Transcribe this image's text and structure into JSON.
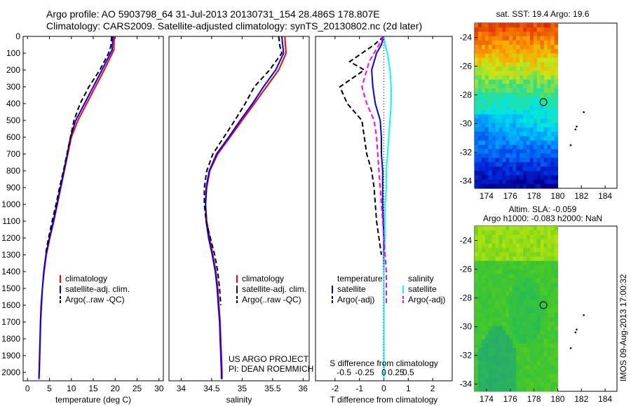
{
  "header": {
    "line1": "Argo profile: AO 5903798_64 31-Jul-2013 20130731_154 28.486S 178.807E",
    "line2": "Climatology: CARS2009. Satellite-adjusted climatology: synTS_20130802.nc (2d later)"
  },
  "side_stamp": "IMOS 09-Aug-2013 17:00:32",
  "chart_data": [
    {
      "id": "temperature",
      "type": "line",
      "xlabel": "temperature (deg C)",
      "ylabel": "",
      "xlim": [
        -1,
        31
      ],
      "ylim": [
        0,
        2050
      ],
      "y_reversed": true,
      "xticks": [
        0,
        5,
        10,
        15,
        20,
        25,
        30
      ],
      "yticks": [
        0,
        100,
        200,
        300,
        400,
        500,
        600,
        700,
        800,
        900,
        1000,
        1100,
        1200,
        1300,
        1400,
        1500,
        1600,
        1700,
        1800,
        1900,
        2000
      ],
      "legend": [
        "climatology",
        "satellite-adj. clim.",
        "Argo(..raw -QC)"
      ],
      "series": [
        {
          "name": "climatology",
          "color": "#ff0000",
          "dash": "solid",
          "points": [
            [
              19.8,
              0
            ],
            [
              19.7,
              80
            ],
            [
              17.5,
              200
            ],
            [
              15.5,
              300
            ],
            [
              13.5,
              400
            ],
            [
              11.5,
              500
            ],
            [
              10,
              600
            ],
            [
              9.2,
              700
            ],
            [
              8.4,
              800
            ],
            [
              7.6,
              900
            ],
            [
              6.8,
              1000
            ],
            [
              6.0,
              1100
            ],
            [
              5.1,
              1200
            ],
            [
              4.3,
              1300
            ],
            [
              3.8,
              1400
            ],
            [
              3.4,
              1500
            ],
            [
              3.2,
              1600
            ],
            [
              3.0,
              1700
            ],
            [
              2.9,
              1800
            ],
            [
              2.8,
              1900
            ],
            [
              2.7,
              2000
            ],
            [
              2.6,
              2040
            ]
          ]
        },
        {
          "name": "satellite-adj. clim.",
          "color": "#0000ff",
          "dash": "solid",
          "points": [
            [
              19.5,
              0
            ],
            [
              19.3,
              80
            ],
            [
              17,
              200
            ],
            [
              15,
              300
            ],
            [
              13,
              400
            ],
            [
              11,
              500
            ],
            [
              9.8,
              600
            ],
            [
              9.1,
              700
            ],
            [
              8.3,
              800
            ],
            [
              7.5,
              900
            ],
            [
              6.7,
              1000
            ],
            [
              5.9,
              1100
            ],
            [
              5.0,
              1200
            ],
            [
              4.2,
              1300
            ],
            [
              3.7,
              1400
            ],
            [
              3.4,
              1500
            ],
            [
              3.1,
              1600
            ],
            [
              2.95,
              1700
            ],
            [
              2.85,
              1800
            ],
            [
              2.75,
              1900
            ],
            [
              2.65,
              2000
            ],
            [
              2.6,
              2040
            ]
          ]
        },
        {
          "name": "Argo(..raw -QC)",
          "color": "#000000",
          "dash": "dashed",
          "points": [
            [
              19.2,
              0
            ],
            [
              19,
              60
            ],
            [
              18.5,
              100
            ],
            [
              16.5,
              200
            ],
            [
              14,
              300
            ],
            [
              12,
              400
            ],
            [
              10.6,
              500
            ],
            [
              9.8,
              600
            ],
            [
              9,
              700
            ],
            [
              8.2,
              800
            ],
            [
              7.3,
              900
            ],
            [
              6.5,
              1000
            ],
            [
              5.6,
              1100
            ],
            [
              4.8,
              1200
            ],
            [
              4.1,
              1300
            ]
          ]
        }
      ]
    },
    {
      "id": "salinity",
      "type": "line",
      "xlabel": "salinity",
      "ylabel": "",
      "xlim": [
        33.8,
        36.1
      ],
      "ylim": [
        0,
        2050
      ],
      "y_reversed": true,
      "xticks": [
        34,
        34.5,
        35,
        35.5,
        36
      ],
      "legend": [
        "climatology",
        "satellite-adj. clim.",
        "Argo(..raw -QC)"
      ],
      "annotation": [
        "US ARGO PROJECT",
        "PI: DEAN ROEMMICH"
      ],
      "series": [
        {
          "name": "climatology",
          "color": "#ff0000",
          "dash": "solid",
          "points": [
            [
              35.7,
              0
            ],
            [
              35.72,
              100
            ],
            [
              35.6,
              200
            ],
            [
              35.4,
              300
            ],
            [
              35.2,
              400
            ],
            [
              35,
              500
            ],
            [
              34.8,
              600
            ],
            [
              34.6,
              700
            ],
            [
              34.47,
              800
            ],
            [
              34.42,
              900
            ],
            [
              34.4,
              1000
            ],
            [
              34.42,
              1100
            ],
            [
              34.47,
              1200
            ],
            [
              34.52,
              1300
            ],
            [
              34.57,
              1400
            ],
            [
              34.6,
              1500
            ],
            [
              34.62,
              1600
            ],
            [
              34.64,
              1700
            ],
            [
              34.65,
              1800
            ],
            [
              34.66,
              1900
            ],
            [
              34.67,
              2000
            ],
            [
              34.67,
              2040
            ]
          ]
        },
        {
          "name": "satellite-adj. clim.",
          "color": "#0000ff",
          "dash": "solid",
          "points": [
            [
              35.65,
              0
            ],
            [
              35.68,
              100
            ],
            [
              35.55,
              200
            ],
            [
              35.35,
              300
            ],
            [
              35.17,
              400
            ],
            [
              34.97,
              500
            ],
            [
              34.78,
              600
            ],
            [
              34.58,
              700
            ],
            [
              34.46,
              800
            ],
            [
              34.41,
              900
            ],
            [
              34.4,
              1000
            ],
            [
              34.41,
              1100
            ],
            [
              34.45,
              1200
            ],
            [
              34.51,
              1300
            ],
            [
              34.56,
              1400
            ],
            [
              34.59,
              1500
            ],
            [
              34.61,
              1600
            ],
            [
              34.63,
              1700
            ],
            [
              34.64,
              1800
            ],
            [
              34.65,
              1900
            ],
            [
              34.66,
              2000
            ],
            [
              34.66,
              2040
            ]
          ]
        },
        {
          "name": "Argo(..raw -QC)",
          "color": "#000000",
          "dash": "dashed",
          "points": [
            [
              35.6,
              0
            ],
            [
              35.62,
              60
            ],
            [
              35.65,
              100
            ],
            [
              35.45,
              200
            ],
            [
              35.2,
              300
            ],
            [
              35.05,
              400
            ],
            [
              34.88,
              500
            ],
            [
              34.7,
              600
            ],
            [
              34.52,
              700
            ],
            [
              34.42,
              800
            ],
            [
              34.38,
              900
            ],
            [
              34.38,
              1000
            ],
            [
              34.41,
              1100
            ],
            [
              34.48,
              1200
            ],
            [
              34.55,
              1300
            ],
            [
              34.6,
              1400
            ],
            [
              34.63,
              1500
            ],
            [
              34.65,
              1600
            ]
          ]
        }
      ]
    },
    {
      "id": "difference",
      "type": "line",
      "xlabel": "T difference from climatology",
      "xlabel_top": "S difference from climatology",
      "xlim": [
        -2.8,
        2.8
      ],
      "ylim": [
        0,
        2050
      ],
      "y_reversed": true,
      "xticks": [
        -2,
        -1,
        0,
        1,
        2
      ],
      "sticks": [
        "-0.5",
        "-0.25",
        "0",
        "0.25",
        "0.5"
      ],
      "legend_temperature": [
        "temperature",
        "satellite",
        "Argo(-adj)"
      ],
      "legend_salinity": [
        "salinity",
        "satellite",
        "Argo(-adj)"
      ],
      "series": [
        {
          "name": "temperature satellite",
          "color": "#0000ff",
          "dash": "solid",
          "points": [
            [
              0,
              0
            ],
            [
              -0.1,
              50
            ],
            [
              -0.3,
              100
            ],
            [
              -0.5,
              200
            ],
            [
              -0.45,
              300
            ],
            [
              -0.35,
              400
            ],
            [
              -0.15,
              500
            ],
            [
              -0.1,
              600
            ],
            [
              -0.1,
              700
            ],
            [
              -0.05,
              800
            ],
            [
              -0.05,
              900
            ],
            [
              -0.05,
              1000
            ],
            [
              0,
              1200
            ],
            [
              0,
              1400
            ],
            [
              0,
              1600
            ],
            [
              0,
              1800
            ],
            [
              0,
              2040
            ]
          ]
        },
        {
          "name": "temperature Argo(-adj)",
          "color": "#000000",
          "dash": "dashed",
          "points": [
            [
              0,
              0
            ],
            [
              -0.4,
              50
            ],
            [
              -1.4,
              150
            ],
            [
              -0.8,
              200
            ],
            [
              -1.8,
              300
            ],
            [
              -1.5,
              400
            ],
            [
              -0.9,
              500
            ],
            [
              -0.8,
              600
            ],
            [
              -0.7,
              700
            ],
            [
              -0.5,
              800
            ],
            [
              -0.4,
              900
            ],
            [
              -0.35,
              1000
            ],
            [
              -0.3,
              1100
            ],
            [
              -0.2,
              1200
            ],
            [
              -0.1,
              1300
            ]
          ]
        },
        {
          "name": "salinity satellite",
          "color": "#00ffff",
          "dash": "solid",
          "points": [
            [
              0,
              0
            ],
            [
              0.05,
              50
            ],
            [
              0.15,
              100
            ],
            [
              0.25,
              200
            ],
            [
              0.3,
              300
            ],
            [
              0.3,
              400
            ],
            [
              0.25,
              500
            ],
            [
              0.2,
              600
            ],
            [
              0.15,
              700
            ],
            [
              0.1,
              800
            ],
            [
              0.1,
              900
            ],
            [
              0.05,
              1000
            ],
            [
              0.05,
              1200
            ],
            [
              0,
              1400
            ],
            [
              0,
              1600
            ],
            [
              0,
              1800
            ],
            [
              0,
              2040
            ]
          ]
        },
        {
          "name": "salinity Argo(-adj)",
          "color": "#ff00ff",
          "dash": "dashed",
          "points": [
            [
              0,
              0
            ],
            [
              -0.2,
              50
            ],
            [
              -0.6,
              150
            ],
            [
              -0.9,
              300
            ],
            [
              -0.7,
              400
            ],
            [
              -0.4,
              500
            ],
            [
              -0.3,
              600
            ],
            [
              -0.25,
              700
            ],
            [
              -0.2,
              800
            ],
            [
              -0.15,
              900
            ],
            [
              -0.1,
              1000
            ],
            [
              -0.05,
              1100
            ],
            [
              0,
              1200
            ],
            [
              0.05,
              1300
            ],
            [
              0.1,
              1400
            ],
            [
              0.1,
              1500
            ],
            [
              0.1,
              1600
            ]
          ]
        }
      ]
    },
    {
      "id": "sst_map",
      "type": "heatmap",
      "title": "sat. SST: 19.4  Argo: 19.6",
      "xlim": [
        173,
        185
      ],
      "ylim": [
        -34.5,
        -23
      ],
      "xticks": [
        174,
        176,
        178,
        180,
        182,
        184
      ],
      "yticks": [
        -24,
        -26,
        -28,
        -30,
        -32,
        -34
      ],
      "marker": [
        178.8,
        -28.5
      ]
    },
    {
      "id": "sla_map",
      "type": "heatmap",
      "title": "Altim. SLA: -0.059",
      "subtitle": "Argo h1000: -0.083  h2000: NaN",
      "xlim": [
        173,
        185
      ],
      "ylim": [
        -34.5,
        -23
      ],
      "xticks": [
        174,
        176,
        178,
        180,
        182,
        184
      ],
      "yticks": [
        -24,
        -26,
        -28,
        -30,
        -32,
        -34
      ],
      "marker": [
        178.8,
        -28.5
      ]
    }
  ]
}
